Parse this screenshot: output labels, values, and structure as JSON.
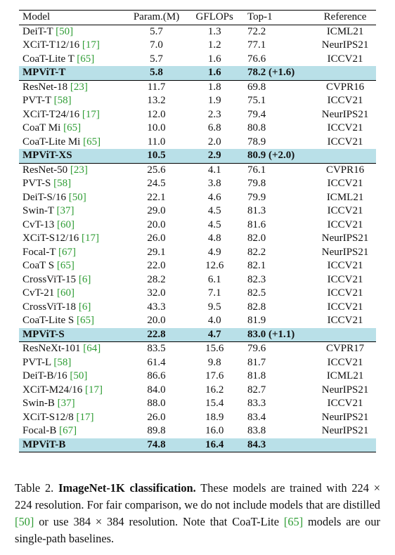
{
  "table": {
    "headers": [
      "Model",
      "Param.(M)",
      "GFLOPs",
      "Top-1",
      "Reference"
    ],
    "groups": [
      {
        "rows": [
          {
            "model": "DeiT-T",
            "cite": "50",
            "param": "5.7",
            "gflops": "1.3",
            "top1": "72.2",
            "ref": "ICML21"
          },
          {
            "model": "XCiT-T12/16",
            "cite": "17",
            "param": "7.0",
            "gflops": "1.2",
            "top1": "77.1",
            "ref": "NeurIPS21"
          },
          {
            "model": "CoaT-Lite T",
            "cite": "65",
            "param": "5.7",
            "gflops": "1.6",
            "top1": "76.6",
            "ref": "ICCV21"
          }
        ],
        "highlight": {
          "model": "MPViT-T",
          "param": "5.8",
          "gflops": "1.6",
          "top1": "78.2 (+1.6)",
          "ref": ""
        }
      },
      {
        "rows": [
          {
            "model": "ResNet-18",
            "cite": "23",
            "param": "11.7",
            "gflops": "1.8",
            "top1": "69.8",
            "ref": "CVPR16"
          },
          {
            "model": "PVT-T",
            "cite": "58",
            "param": "13.2",
            "gflops": "1.9",
            "top1": "75.1",
            "ref": "ICCV21"
          },
          {
            "model": "XCiT-T24/16",
            "cite": "17",
            "param": "12.0",
            "gflops": "2.3",
            "top1": "79.4",
            "ref": "NeurIPS21"
          },
          {
            "model": "CoaT Mi",
            "cite": "65",
            "param": "10.0",
            "gflops": "6.8",
            "top1": "80.8",
            "ref": "ICCV21"
          },
          {
            "model": "CoaT-Lite Mi",
            "cite": "65",
            "param": "11.0",
            "gflops": "2.0",
            "top1": "78.9",
            "ref": "ICCV21"
          }
        ],
        "highlight": {
          "model": "MPViT-XS",
          "param": "10.5",
          "gflops": "2.9",
          "top1": "80.9 (+2.0)",
          "ref": ""
        }
      },
      {
        "rows": [
          {
            "model": "ResNet-50",
            "cite": "23",
            "param": "25.6",
            "gflops": "4.1",
            "top1": "76.1",
            "ref": "CVPR16"
          },
          {
            "model": "PVT-S",
            "cite": "58",
            "param": "24.5",
            "gflops": "3.8",
            "top1": "79.8",
            "ref": "ICCV21"
          },
          {
            "model": "DeiT-S/16",
            "cite": "50",
            "param": "22.1",
            "gflops": "4.6",
            "top1": "79.9",
            "ref": "ICML21"
          },
          {
            "model": "Swin-T",
            "cite": "37",
            "param": "29.0",
            "gflops": "4.5",
            "top1": "81.3",
            "ref": "ICCV21"
          },
          {
            "model": "CvT-13",
            "cite": "60",
            "param": "20.0",
            "gflops": "4.5",
            "top1": "81.6",
            "ref": "ICCV21"
          },
          {
            "model": "XCiT-S12/16",
            "cite": "17",
            "param": "26.0",
            "gflops": "4.8",
            "top1": "82.0",
            "ref": "NeurIPS21"
          },
          {
            "model": "Focal-T",
            "cite": "67",
            "param": "29.1",
            "gflops": "4.9",
            "top1": "82.2",
            "ref": "NeurIPS21"
          },
          {
            "model": "CoaT S",
            "cite": "65",
            "param": "22.0",
            "gflops": "12.6",
            "top1": "82.1",
            "ref": "ICCV21"
          },
          {
            "model": "CrossViT-15",
            "cite": "6",
            "param": "28.2",
            "gflops": "6.1",
            "top1": "82.3",
            "ref": "ICCV21"
          },
          {
            "model": "CvT-21",
            "cite": "60",
            "param": "32.0",
            "gflops": "7.1",
            "top1": "82.5",
            "ref": "ICCV21"
          },
          {
            "model": "CrossViT-18",
            "cite": "6",
            "param": "43.3",
            "gflops": "9.5",
            "top1": "82.8",
            "ref": "ICCV21"
          },
          {
            "model": "CoaT-Lite S",
            "cite": "65",
            "param": "20.0",
            "gflops": "4.0",
            "top1": "81.9",
            "ref": "ICCV21"
          }
        ],
        "highlight": {
          "model": "MPViT-S",
          "param": "22.8",
          "gflops": "4.7",
          "top1": "83.0 (+1.1)",
          "ref": ""
        }
      },
      {
        "rows": [
          {
            "model": "ResNeXt-101",
            "cite": "64",
            "param": "83.5",
            "gflops": "15.6",
            "top1": "79.6",
            "ref": "CVPR17"
          },
          {
            "model": "PVT-L",
            "cite": "58",
            "param": "61.4",
            "gflops": "9.8",
            "top1": "81.7",
            "ref": "ICCV21"
          },
          {
            "model": "DeiT-B/16",
            "cite": "50",
            "param": "86.6",
            "gflops": "17.6",
            "top1": "81.8",
            "ref": "ICML21"
          },
          {
            "model": "XCiT-M24/16",
            "cite": "17",
            "param": "84.0",
            "gflops": "16.2",
            "top1": "82.7",
            "ref": "NeurIPS21"
          },
          {
            "model": "Swin-B",
            "cite": "37",
            "param": "88.0",
            "gflops": "15.4",
            "top1": "83.3",
            "ref": "ICCV21"
          },
          {
            "model": "XCiT-S12/8",
            "cite": "17",
            "param": "26.0",
            "gflops": "18.9",
            "top1": "83.4",
            "ref": "NeurIPS21"
          },
          {
            "model": "Focal-B",
            "cite": "67",
            "param": "89.8",
            "gflops": "16.0",
            "top1": "83.8",
            "ref": "NeurIPS21"
          }
        ],
        "highlight": {
          "model": "MPViT-B",
          "param": "74.8",
          "gflops": "16.4",
          "top1": "84.3",
          "ref": ""
        }
      }
    ]
  },
  "caption": {
    "label": "Table 2.",
    "title": "ImageNet-1K classification.",
    "text1": " These models are trained with 224 × 224 resolution. For fair comparison, we do not include models that are distilled ",
    "cite1": "[50]",
    "text2": " or use 384 × 384 resolution. Note that CoaT-Lite ",
    "cite2": "[65]",
    "text3": " models are our single-path baselines."
  },
  "colors": {
    "highlight": "#b9e0e8",
    "citation": "#2d9c33"
  }
}
